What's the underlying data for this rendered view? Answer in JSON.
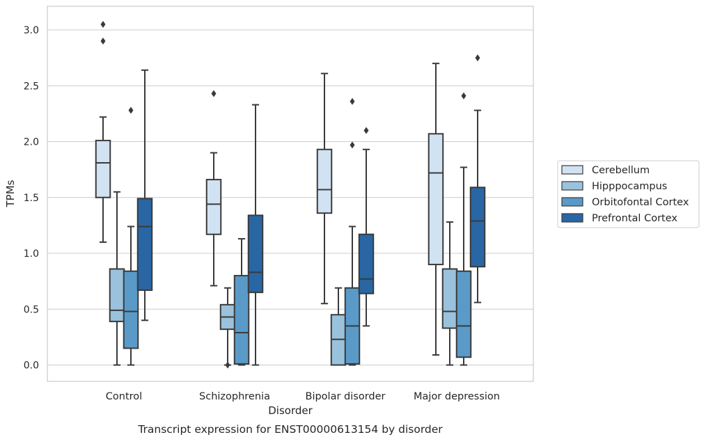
{
  "chart_data": {
    "type": "box",
    "caption": "Transcript expression for ENST00000613154 by disorder",
    "xlabel": "Disorder",
    "ylabel": "TPMs",
    "ylim": [
      -0.15,
      3.2
    ],
    "yticks": [
      "0.0",
      "0.5",
      "1.0",
      "1.5",
      "2.0",
      "2.5",
      "3.0"
    ],
    "grid": "horizontal",
    "legend_position": "right",
    "categories": [
      "Control",
      "Schizophrenia",
      "Bipolar disorder",
      "Major depression"
    ],
    "series": [
      {
        "name": "Cerebellum",
        "color": "#d1e2f2",
        "boxes": [
          {
            "whislo": 1.1,
            "q1": 1.5,
            "med": 1.81,
            "q3": 2.01,
            "whishi": 2.22,
            "fliers": [
              3.05,
              2.9
            ]
          },
          {
            "whislo": 0.71,
            "q1": 1.17,
            "med": 1.44,
            "q3": 1.66,
            "whishi": 1.9,
            "fliers": [
              2.43
            ]
          },
          {
            "whislo": 0.55,
            "q1": 1.36,
            "med": 1.57,
            "q3": 1.93,
            "whishi": 2.61,
            "fliers": []
          },
          {
            "whislo": 0.09,
            "q1": 0.9,
            "med": 1.72,
            "q3": 2.07,
            "whishi": 2.7,
            "fliers": []
          }
        ]
      },
      {
        "name": "Hipppocampus",
        "color": "#9ac2dd",
        "boxes": [
          {
            "whislo": 0.0,
            "q1": 0.39,
            "med": 0.49,
            "q3": 0.86,
            "whishi": 1.55,
            "fliers": []
          },
          {
            "whislo": 0.0,
            "q1": 0.32,
            "med": 0.43,
            "q3": 0.54,
            "whishi": 0.69,
            "fliers": [
              0.0
            ]
          },
          {
            "whislo": 0.0,
            "q1": 0.0,
            "med": 0.23,
            "q3": 0.45,
            "whishi": 0.69,
            "fliers": []
          },
          {
            "whislo": 0.0,
            "q1": 0.33,
            "med": 0.48,
            "q3": 0.86,
            "whishi": 1.28,
            "fliers": []
          }
        ]
      },
      {
        "name": "Orbitofontal Cortex",
        "color": "#5a9ac8",
        "boxes": [
          {
            "whislo": 0.0,
            "q1": 0.15,
            "med": 0.48,
            "q3": 0.84,
            "whishi": 1.24,
            "fliers": [
              2.28
            ]
          },
          {
            "whislo": 0.0,
            "q1": 0.01,
            "med": 0.29,
            "q3": 0.8,
            "whishi": 1.13,
            "fliers": []
          },
          {
            "whislo": 0.0,
            "q1": 0.01,
            "med": 0.35,
            "q3": 0.69,
            "whishi": 1.24,
            "fliers": [
              2.36,
              1.97
            ]
          },
          {
            "whislo": 0.0,
            "q1": 0.07,
            "med": 0.35,
            "q3": 0.84,
            "whishi": 1.77,
            "fliers": [
              2.41
            ]
          }
        ]
      },
      {
        "name": "Prefrontal Cortex",
        "color": "#2966a4",
        "boxes": [
          {
            "whislo": 0.4,
            "q1": 0.67,
            "med": 1.24,
            "q3": 1.49,
            "whishi": 2.64,
            "fliers": []
          },
          {
            "whislo": 0.0,
            "q1": 0.65,
            "med": 0.83,
            "q3": 1.34,
            "whishi": 2.33,
            "fliers": []
          },
          {
            "whislo": 0.35,
            "q1": 0.64,
            "med": 0.77,
            "q3": 1.17,
            "whishi": 1.93,
            "fliers": [
              2.1
            ]
          },
          {
            "whislo": 0.56,
            "q1": 0.88,
            "med": 1.29,
            "q3": 1.59,
            "whishi": 2.28,
            "fliers": [
              2.75
            ]
          }
        ]
      }
    ]
  }
}
